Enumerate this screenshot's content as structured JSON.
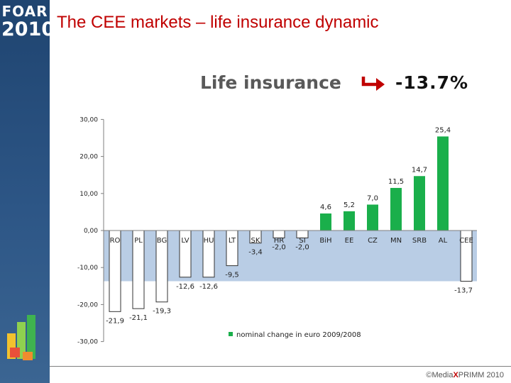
{
  "slide": {
    "title": "The CEE markets – life insurance dynamic",
    "logo_line1": "FOAR",
    "logo_line2": "2010",
    "headline_label": "Life insurance",
    "headline_value": "-13.7%",
    "headline_icon": "down-right-arrow-icon",
    "copyright_prefix": "©Media",
    "copyright_x": "X",
    "copyright_suffix": "PRIMM 2010"
  },
  "chart_data": {
    "type": "bar",
    "categories": [
      "RO",
      "PL",
      "BG",
      "LV",
      "HU",
      "LT",
      "SK",
      "HR",
      "SI",
      "BiH",
      "EE",
      "CZ",
      "MN",
      "SRB",
      "AL",
      "CEE"
    ],
    "series": [
      {
        "name": "nominal change in euro 2009/2008",
        "values": [
          -21.9,
          -21.1,
          -19.3,
          -12.6,
          -12.6,
          -9.5,
          -3.4,
          -2.0,
          -2.0,
          4.6,
          5.2,
          7.0,
          11.5,
          14.7,
          25.4,
          -13.7
        ],
        "labels": [
          "-21,9",
          "-21,1",
          "-19,3",
          "-12,6",
          "-12,6",
          "-9,5",
          "-3,4",
          "-2,0",
          "-2,0",
          "4,6",
          "5,2",
          "7,0",
          "11,5",
          "14,7",
          "25,4",
          "-13,7"
        ]
      }
    ],
    "y_ticks": [
      "30,00",
      "20,00",
      "10,00",
      "0,00",
      "-10,00",
      "-20,00",
      "-30,00"
    ],
    "ylim": [
      -30,
      30
    ],
    "shaded_band": [
      -13.7,
      0
    ],
    "positive_color": "#1aaf4b",
    "negative_color": "#ffffff",
    "band_color": "#b9cde5",
    "legend_position": "bottom"
  }
}
